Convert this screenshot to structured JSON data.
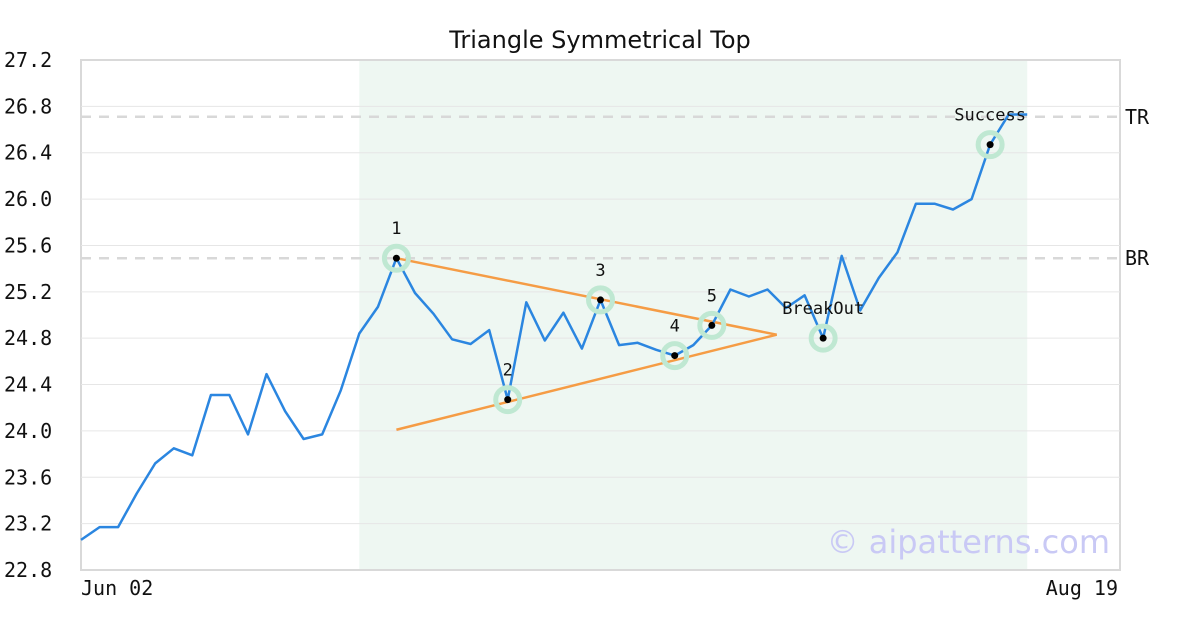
{
  "chart_data": {
    "type": "line",
    "title": "Triangle Symmetrical Top",
    "xlabel": "",
    "ylabel": "",
    "ylim": [
      22.8,
      27.2
    ],
    "yticks": [
      "22.8",
      "23.2",
      "23.6",
      "24.0",
      "24.4",
      "24.8",
      "25.2",
      "25.6",
      "26.0",
      "26.4",
      "26.8",
      "27.2"
    ],
    "x_tick_labels": {
      "first": "Jun 02",
      "last": "Aug 19"
    },
    "x_count": 56,
    "series": [
      {
        "values": [
          23.06,
          23.17,
          23.17,
          23.46,
          23.72,
          23.85,
          23.79,
          24.31,
          24.31,
          23.97,
          24.49,
          24.17,
          23.93,
          23.97,
          24.35,
          24.84,
          25.07,
          25.49,
          25.19,
          25.01,
          24.79,
          24.75,
          24.87,
          24.27,
          25.11,
          24.78,
          25.02,
          24.71,
          25.13,
          24.74,
          24.76,
          24.7,
          24.65,
          24.74,
          24.91,
          25.22,
          25.16,
          25.22,
          25.06,
          25.17,
          24.8,
          25.51,
          25.04,
          25.32,
          25.54,
          25.96,
          25.96,
          25.91,
          26.0,
          26.47,
          26.73,
          26.73
        ]
      }
    ],
    "pattern_region": {
      "x_start": 15,
      "x_end": 51
    },
    "reference_lines": [
      {
        "label": "TR",
        "value": 26.71
      },
      {
        "label": "BR",
        "value": 25.49
      }
    ],
    "trend_lines": [
      {
        "from": [
          17,
          25.49
        ],
        "to": [
          37.5,
          24.83
        ]
      },
      {
        "from": [
          17,
          24.01
        ],
        "to": [
          37.5,
          24.83
        ]
      }
    ],
    "points": [
      {
        "label": "1",
        "x": 17,
        "y": 25.49
      },
      {
        "label": "2",
        "x": 23,
        "y": 24.27
      },
      {
        "label": "3",
        "x": 28,
        "y": 25.13
      },
      {
        "label": "4",
        "x": 32,
        "y": 24.65
      },
      {
        "label": "5",
        "x": 34,
        "y": 24.91
      },
      {
        "label": "BreakOut",
        "x": 40,
        "y": 24.8
      },
      {
        "label": "Success",
        "x": 49,
        "y": 26.47
      }
    ],
    "colors": {
      "line": "#2b86e0",
      "trend": "#f59c45",
      "region": "#eef7f2",
      "marker_halo": "#bfe8d2",
      "reference": "#d8d8d8",
      "grid": "#e6e6e6",
      "frame": "#d9d9d9"
    }
  },
  "watermark": "© aipatterns.com"
}
